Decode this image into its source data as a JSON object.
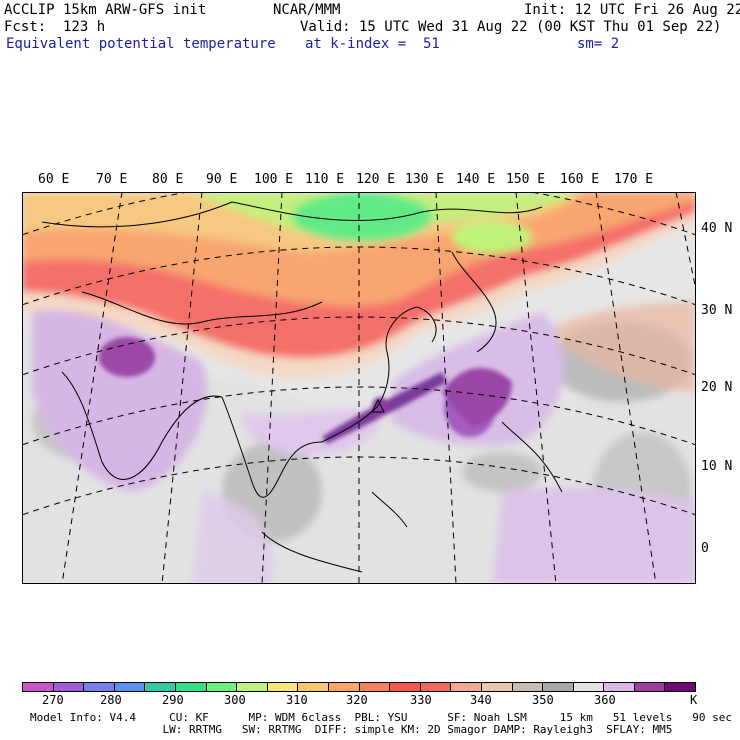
{
  "header": {
    "model_line": "ACCLIP 15km ARW-GFS init",
    "forecast_line": "Fcst:  123 h",
    "field_name": "Equivalent potential temperature",
    "org": "NCAR/MMM",
    "valid_line": "Valid: 15 UTC Wed 31 Aug 22 (00 KST Thu 01 Sep 22)",
    "init_line": "Init: 12 UTC Fri 26 Aug 22",
    "level_line": "at k-index =  51",
    "smooth_line": "sm= 2"
  },
  "map": {
    "lon_labels": [
      "60 E",
      "70 E",
      "80 E",
      "90 E",
      "100 E",
      "110 E",
      "120 E",
      "130 E",
      "140 E",
      "150 E",
      "160 E",
      "170 E"
    ],
    "lat_labels": [
      "40 N",
      "30 N",
      "20 N",
      "10 N",
      "0"
    ]
  },
  "colorbar": {
    "colors": [
      "#c855c8",
      "#9b5fd9",
      "#7d7de8",
      "#5a91ee",
      "#2ecba5",
      "#33e08a",
      "#6df07d",
      "#bff27a",
      "#f3e77c",
      "#f7c86e",
      "#f8a763",
      "#f5835a",
      "#f25a4c",
      "#f06a5e",
      "#f2ab93",
      "#e8c7b1",
      "#c4bdb6",
      "#a8a8a8",
      "#e3e3e3",
      "#d7b8e2",
      "#9d3d9d",
      "#6f0a77"
    ],
    "tick_labels": [
      "270",
      "280",
      "290",
      "300",
      "310",
      "320",
      "330",
      "340",
      "350",
      "360"
    ],
    "unit": "K"
  },
  "footer": {
    "line1": "Model Info: V4.4     CU: KF      MP: WDM 6class  PBL: YSU      SF: Noah LSM     15 km   51 levels   90 sec",
    "line2": "                    LW: RRTMG   SW: RRTMG  DIFF: simple KM: 2D Smagor DAMP: Rayleigh3  SFLAY: MM5"
  }
}
